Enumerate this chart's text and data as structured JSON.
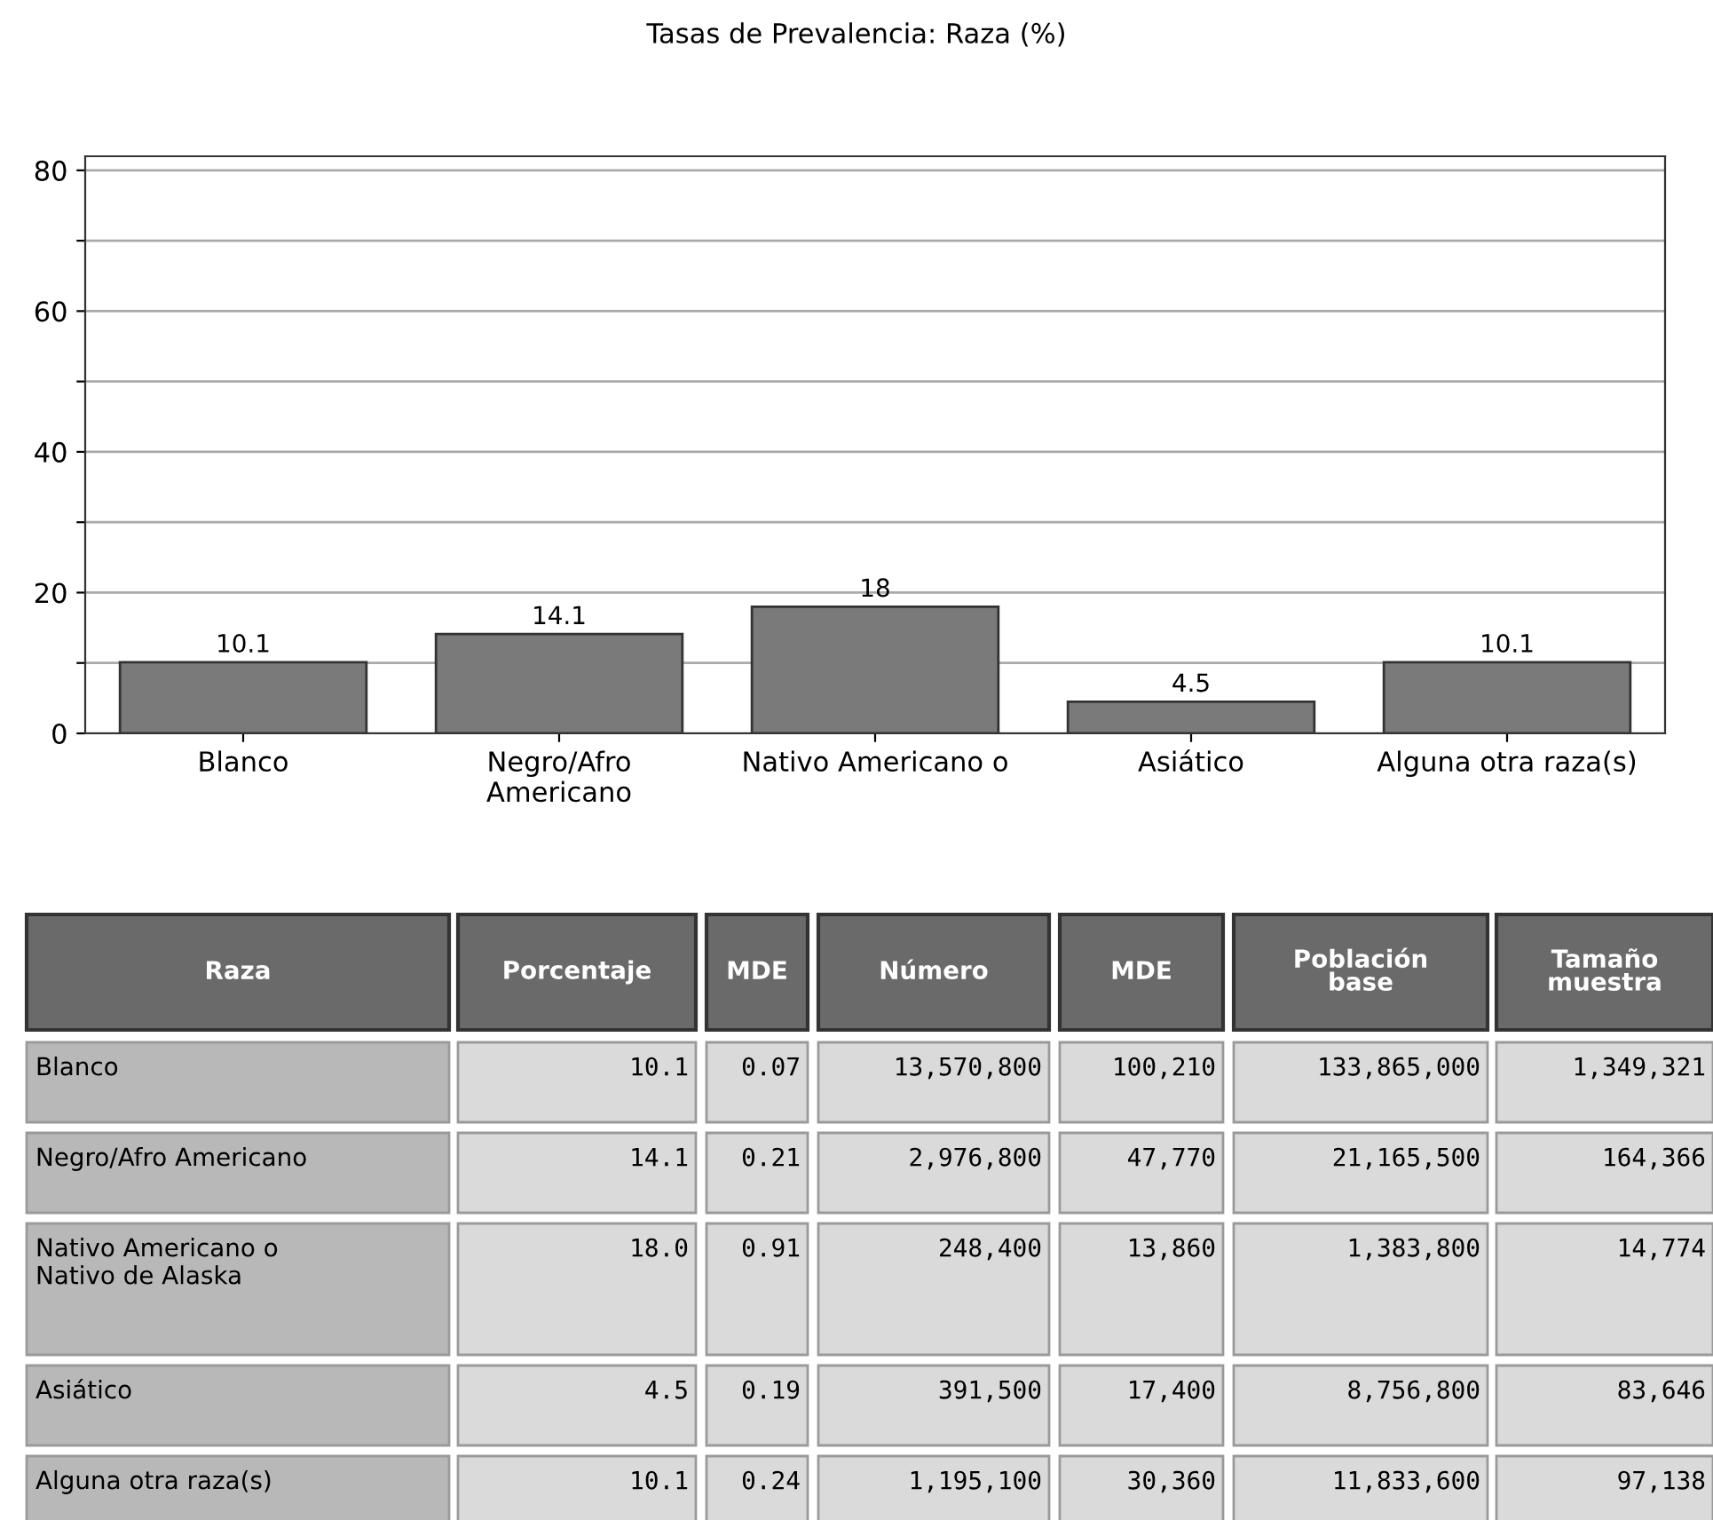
{
  "chart_data": [
    {
      "type": "bar",
      "title": "Tasas de Prevalencia: Raza (%)",
      "categories": [
        "Blanco",
        "Negro/Afro\nAmericano",
        "Nativo Americano o",
        "Asiático",
        "Alguna otra raza(s)"
      ],
      "values": [
        10.1,
        14.1,
        18,
        4.5,
        10.1
      ],
      "color": "#7a7a7a",
      "data_labels": true,
      "ylim": [
        0,
        82
      ],
      "yticks": [
        0,
        {
          "value": 10,
          "label": null
        },
        20,
        {
          "value": 30,
          "label": null
        },
        40,
        {
          "value": 50,
          "label": null
        },
        60,
        {
          "value": 70,
          "label": null
        },
        80
      ],
      "grid": "y",
      "legend": false
    },
    {
      "type": "other",
      "categories": [
        "Raza",
        "Porcentaje",
        "MDE",
        "Número",
        "MDE",
        "Población\nbase",
        "Tamaño\nmuestra"
      ],
      "y_categories": [
        "Blanco",
        "Negro/Afro Americano",
        "Nativo Americano o\nNativo de Alaska",
        "Asiático",
        "Alguna otra raza(s)"
      ],
      "cell_labels": [
        [
          "10.1",
          "0.07",
          "13,570,800",
          "100,210",
          "133,865,000",
          "1,349,321"
        ],
        [
          "14.1",
          "0.21",
          "2,976,800",
          "47,770",
          "21,165,500",
          "164,366"
        ],
        [
          "18.0",
          "0.91",
          "248,400",
          "13,860",
          "1,383,800",
          "14,774"
        ],
        [
          "4.5",
          "0.19",
          "391,500",
          "17,400",
          "8,756,800",
          "83,646"
        ],
        [
          "10.1",
          "0.24",
          "1,195,100",
          "30,360",
          "11,833,600",
          "97,138"
        ]
      ]
    }
  ]
}
